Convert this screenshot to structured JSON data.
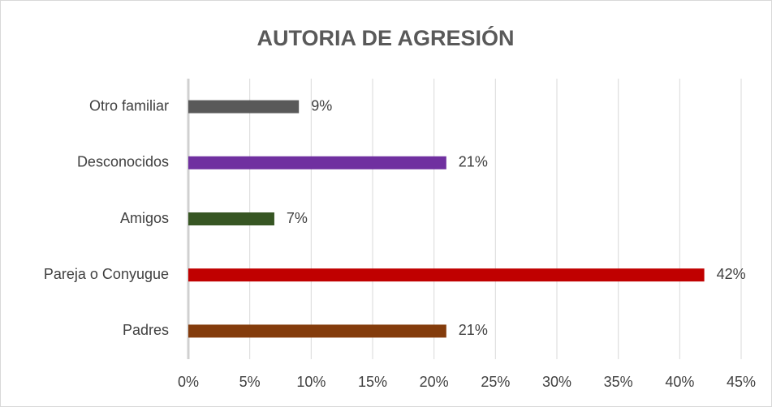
{
  "chart_data": {
    "type": "bar",
    "orientation": "horizontal",
    "title": "AUTORIA DE AGRESIÓN",
    "categories": [
      "Otro familiar",
      "Desconocidos",
      "Amigos",
      "Pareja o Conyugue",
      "Padres"
    ],
    "values": [
      9,
      21,
      7,
      42,
      21
    ],
    "value_labels": [
      "9%",
      "21%",
      "7%",
      "42%",
      "21%"
    ],
    "colors": [
      "#595959",
      "#7030a0",
      "#375623",
      "#c00000",
      "#843c0c"
    ],
    "xlim": [
      0,
      45
    ],
    "xticks": [
      {
        "value": 0,
        "label": "0%"
      },
      {
        "value": 5,
        "label": "5%"
      },
      {
        "value": 10,
        "label": "10%"
      },
      {
        "value": 15,
        "label": "15%"
      },
      {
        "value": 20,
        "label": "20%"
      },
      {
        "value": 25,
        "label": "25%"
      },
      {
        "value": 30,
        "label": "30%"
      },
      {
        "value": 35,
        "label": "35%"
      },
      {
        "value": 40,
        "label": "40%"
      },
      {
        "value": 45,
        "label": "45%"
      }
    ],
    "grid": true
  }
}
